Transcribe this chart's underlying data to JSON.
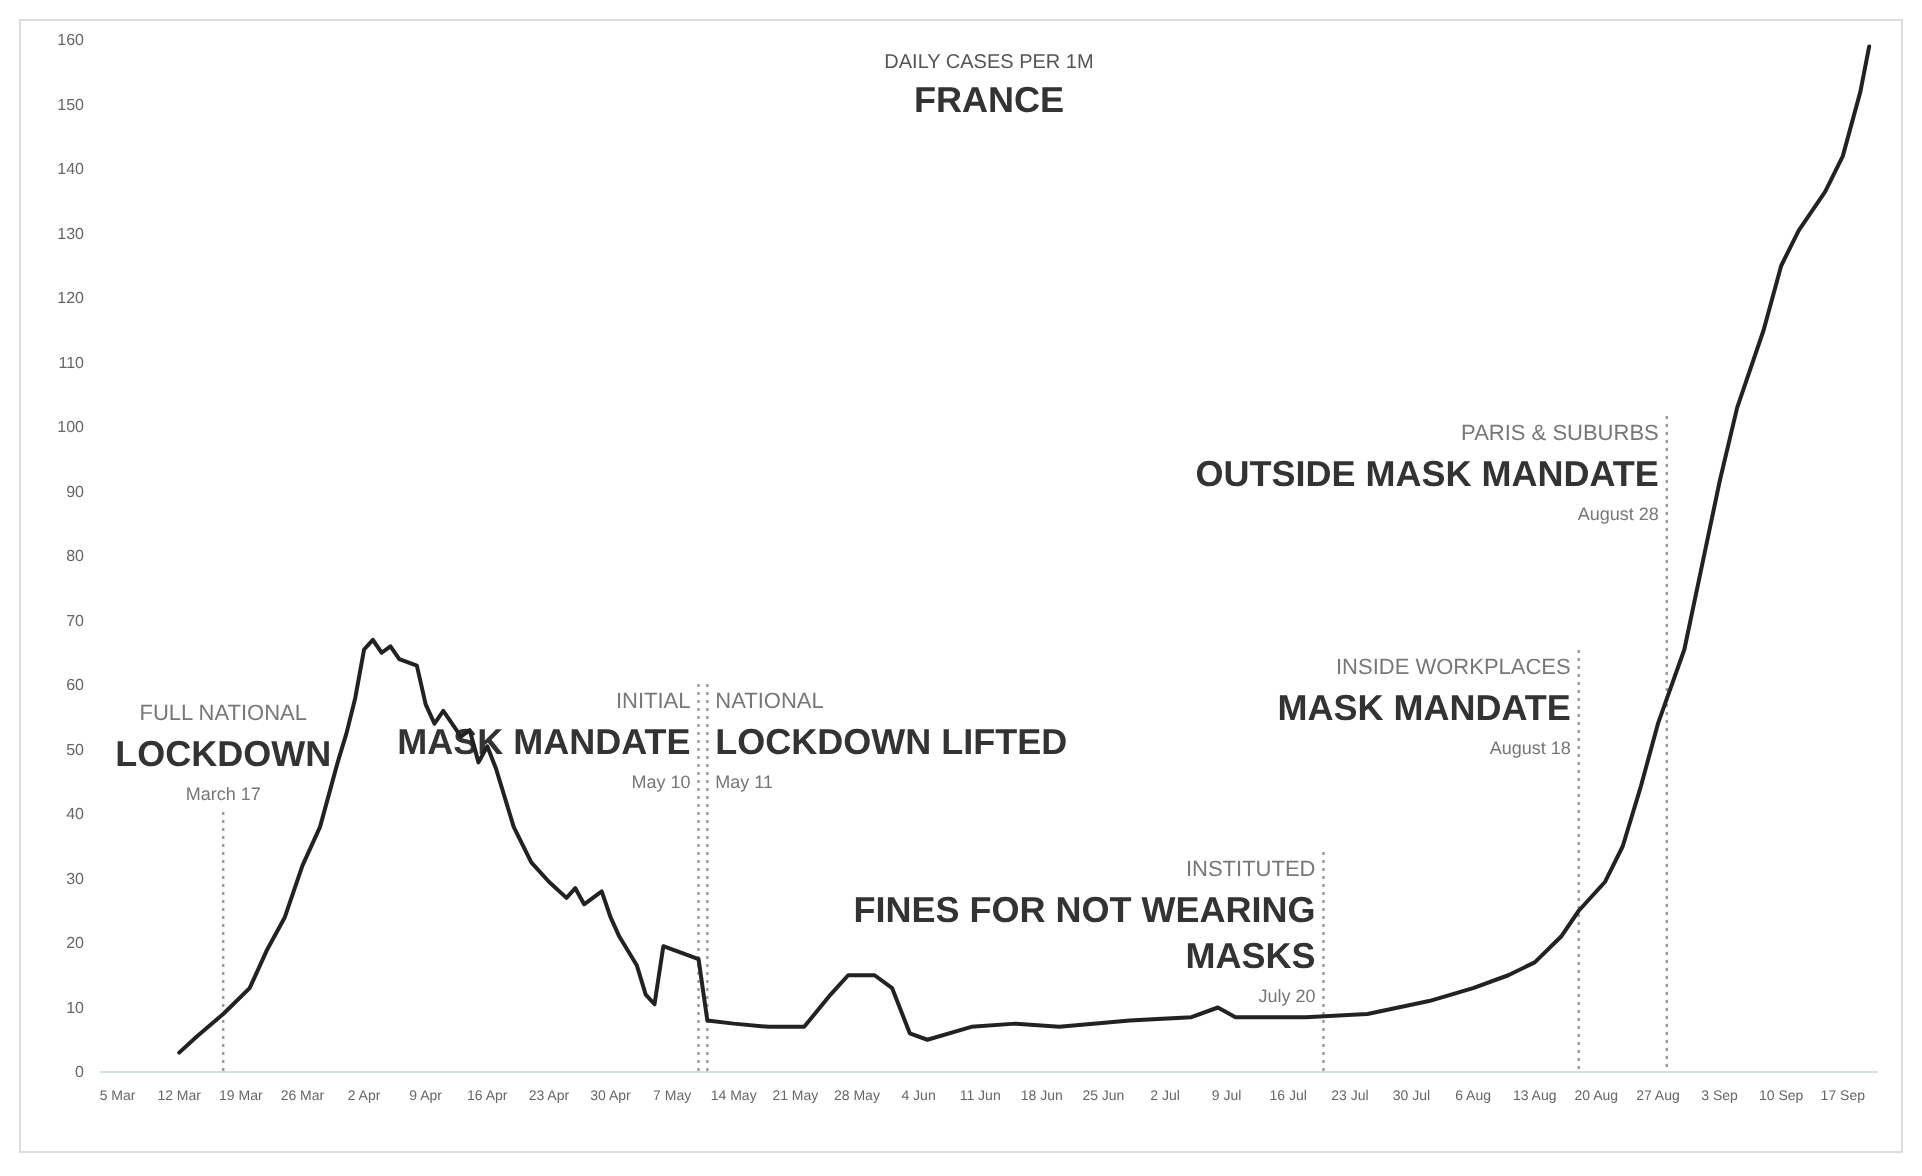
{
  "chart_data": {
    "type": "line",
    "title": "FRANCE",
    "subtitle": "DAILY CASES PER 1M",
    "x": [
      "--03-12",
      "--03-14",
      "--03-17",
      "--03-20",
      "--03-22",
      "--03-24",
      "--03-26",
      "--03-28",
      "--03-30",
      "--03-31",
      "--04-01",
      "--04-02",
      "--04-03",
      "--04-04",
      "--04-05",
      "--04-06",
      "--04-08",
      "--04-09",
      "--04-10",
      "--04-11",
      "--04-12",
      "--04-13",
      "--04-14",
      "--04-15",
      "--04-16",
      "--04-17",
      "--04-19",
      "--04-21",
      "--04-23",
      "--04-25",
      "--04-26",
      "--04-27",
      "--04-29",
      "--04-30",
      "--05-01",
      "--05-03",
      "--05-04",
      "--05-05",
      "--05-06",
      "--05-08",
      "--05-10",
      "--05-11",
      "--05-14",
      "--05-18",
      "--05-22",
      "--05-25",
      "--05-27",
      "--05-30",
      "--06-01",
      "--06-03",
      "--06-05",
      "--06-10",
      "--06-15",
      "--06-20",
      "--06-28",
      "--07-05",
      "--07-08",
      "--07-10",
      "--07-18",
      "--07-25",
      "--08-01",
      "--08-06",
      "--08-10",
      "--08-13",
      "--08-16",
      "--08-18",
      "--08-21",
      "--08-23",
      "--08-25",
      "--08-27",
      "--08-30",
      "--09-01",
      "--09-03",
      "--09-05",
      "--09-08",
      "--09-10",
      "--09-12",
      "--09-15",
      "--09-17",
      "--09-19",
      "--09-20"
    ],
    "series": [
      {
        "color": "#222222",
        "values": [
          3,
          5.5,
          9,
          13,
          19,
          24,
          32,
          38,
          48,
          52.5,
          58,
          65.5,
          67,
          65,
          66,
          64,
          63,
          57,
          54,
          56,
          54,
          52,
          53,
          48,
          50.5,
          47,
          38,
          32.5,
          29.5,
          27,
          28.5,
          26,
          28,
          24,
          21,
          16.5,
          12,
          10.5,
          19.5,
          18.5,
          17.5,
          8,
          7.5,
          7,
          7,
          12,
          15,
          15,
          13,
          6,
          5,
          7,
          7.5,
          7,
          8,
          8.5,
          10,
          8.5,
          8.5,
          9,
          11,
          13,
          15,
          17,
          21,
          25,
          29.5,
          35,
          44,
          54,
          65.5,
          78.5,
          91.5,
          103,
          115,
          125,
          130.5,
          136.5,
          142,
          152,
          159
        ]
      }
    ],
    "xlim": [
      "--03-03",
      "--09-21"
    ],
    "xticks": [
      {
        "value": "--03-05",
        "label": "5 Mar"
      },
      {
        "value": "--03-12",
        "label": "12 Mar"
      },
      {
        "value": "--03-19",
        "label": "19 Mar"
      },
      {
        "value": "--03-26",
        "label": "26 Mar"
      },
      {
        "value": "--04-02",
        "label": "2 Apr"
      },
      {
        "value": "--04-09",
        "label": "9 Apr"
      },
      {
        "value": "--04-16",
        "label": "16 Apr"
      },
      {
        "value": "--04-23",
        "label": "23 Apr"
      },
      {
        "value": "--04-30",
        "label": "30 Apr"
      },
      {
        "value": "--05-07",
        "label": "7 May"
      },
      {
        "value": "--05-14",
        "label": "14 May"
      },
      {
        "value": "--05-21",
        "label": "21 May"
      },
      {
        "value": "--05-28",
        "label": "28 May"
      },
      {
        "value": "--06-04",
        "label": "4 Jun"
      },
      {
        "value": "--06-11",
        "label": "11 Jun"
      },
      {
        "value": "--06-18",
        "label": "18 Jun"
      },
      {
        "value": "--06-25",
        "label": "25 Jun"
      },
      {
        "value": "--07-02",
        "label": "2 Jul"
      },
      {
        "value": "--07-09",
        "label": "9 Jul"
      },
      {
        "value": "--07-16",
        "label": "16 Jul"
      },
      {
        "value": "--07-23",
        "label": "23 Jul"
      },
      {
        "value": "--07-30",
        "label": "30 Jul"
      },
      {
        "value": "--08-06",
        "label": "6 Aug"
      },
      {
        "value": "--08-13",
        "label": "13 Aug"
      },
      {
        "value": "--08-20",
        "label": "20 Aug"
      },
      {
        "value": "--08-27",
        "label": "27 Aug"
      },
      {
        "value": "--09-03",
        "label": "3 Sep"
      },
      {
        "value": "--09-10",
        "label": "10 Sep"
      },
      {
        "value": "--09-17",
        "label": "17 Sep"
      }
    ],
    "ylim": [
      0,
      160
    ],
    "yticks": [
      0,
      10,
      20,
      30,
      40,
      50,
      60,
      70,
      80,
      90,
      100,
      110,
      120,
      130,
      140,
      150,
      160
    ],
    "ref_lines": [
      {
        "axis": "x",
        "value": "--03-17",
        "label": "March 17",
        "line_style": "dotted",
        "color": "#999999"
      },
      {
        "axis": "x",
        "value": "--05-10",
        "label": "May 10",
        "line_style": "dotted",
        "color": "#999999"
      },
      {
        "axis": "x",
        "value": "--05-11",
        "label": "May 11",
        "line_style": "dotted",
        "color": "#999999"
      },
      {
        "axis": "x",
        "value": "--07-20",
        "label": "July 20",
        "line_style": "dotted",
        "color": "#999999"
      },
      {
        "axis": "x",
        "value": "--08-18",
        "label": "August 18",
        "line_style": "dotted",
        "color": "#999999"
      },
      {
        "axis": "x",
        "value": "--08-28",
        "label": "August 28",
        "line_style": "dotted",
        "color": "#999999"
      }
    ],
    "annotations": [
      "FULL NATIONAL",
      "LOCKDOWN",
      "INITIAL",
      "MASK MANDATE",
      "NATIONAL",
      "LOCKDOWN LIFTED",
      "INSTITUTED",
      "FINES FOR NOT WEARING MASKS",
      "INSIDE WORKPLACES",
      "MASK MANDATE",
      "PARIS & SUBURBS",
      "OUTSIDE MASK MANDATE"
    ],
    "line_style": "solid",
    "marker": "none",
    "grid": false
  }
}
